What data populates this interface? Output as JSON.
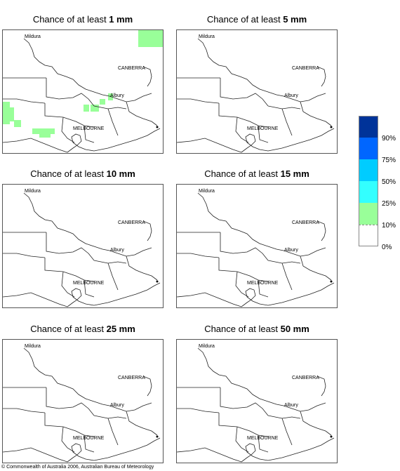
{
  "panels": [
    {
      "prefix": "Chance of at least ",
      "amount": "1 mm"
    },
    {
      "prefix": "Chance of at least ",
      "amount": "5 mm"
    },
    {
      "prefix": "Chance of at least ",
      "amount": "10 mm"
    },
    {
      "prefix": "Chance of at least ",
      "amount": "15 mm"
    },
    {
      "prefix": "Chance of at least ",
      "amount": "25 mm"
    },
    {
      "prefix": "Chance of at least ",
      "amount": "50 mm"
    }
  ],
  "map_labels": {
    "mildura": "Mildura",
    "canberra": "CANBERRA",
    "albury": "Albury",
    "melbourne": "MELBOURNE"
  },
  "legend": {
    "colors": [
      "#003399",
      "#0066ff",
      "#00ccff",
      "#33ffff",
      "#99ff99",
      "#ffffff"
    ],
    "labels": [
      "90%",
      "75%",
      "50%",
      "25%",
      "10%",
      "0%"
    ]
  },
  "copyright": "© Commonwealth of Australia 2006, Australian Bureau of Meteorology"
}
